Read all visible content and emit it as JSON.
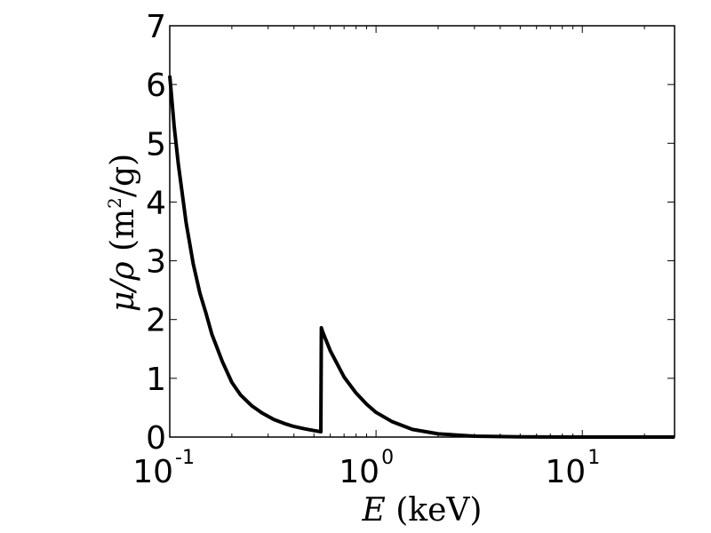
{
  "chart_data": {
    "type": "line",
    "x_scale": "log",
    "xlim": [
      0.1,
      28
    ],
    "ylim": [
      0,
      7
    ],
    "grid": false,
    "xlabel": {
      "var": "E",
      "unit": "(keV)"
    },
    "ylabel": {
      "var": "μ/ρ",
      "unit_open": "(m",
      "unit_sup": "2",
      "unit_close": "/g)"
    },
    "x_ticks": [
      {
        "value": 0.1,
        "base": "10",
        "exp": "-1"
      },
      {
        "value": 1,
        "base": "10",
        "exp": "0"
      },
      {
        "value": 10,
        "base": "10",
        "exp": "1"
      }
    ],
    "y_ticks": [
      {
        "value": 0,
        "label": "0"
      },
      {
        "value": 1,
        "label": "1"
      },
      {
        "value": 2,
        "label": "2"
      },
      {
        "value": 3,
        "label": "3"
      },
      {
        "value": 4,
        "label": "4"
      },
      {
        "value": 5,
        "label": "5"
      },
      {
        "value": 6,
        "label": "6"
      },
      {
        "value": 7,
        "label": "7"
      }
    ],
    "series": [
      {
        "color": "#000000",
        "points": [
          [
            0.1,
            6.15
          ],
          [
            0.105,
            5.3
          ],
          [
            0.11,
            4.65
          ],
          [
            0.12,
            3.65
          ],
          [
            0.13,
            2.95
          ],
          [
            0.14,
            2.45
          ],
          [
            0.15,
            2.1
          ],
          [
            0.16,
            1.75
          ],
          [
            0.18,
            1.28
          ],
          [
            0.2,
            0.93
          ],
          [
            0.22,
            0.72
          ],
          [
            0.25,
            0.53
          ],
          [
            0.28,
            0.41
          ],
          [
            0.32,
            0.3
          ],
          [
            0.36,
            0.23
          ],
          [
            0.4,
            0.18
          ],
          [
            0.45,
            0.14
          ],
          [
            0.5,
            0.11
          ],
          [
            0.54,
            0.09
          ],
          [
            0.543,
            1.86
          ],
          [
            0.55,
            1.8
          ],
          [
            0.6,
            1.47
          ],
          [
            0.7,
            1.02
          ],
          [
            0.8,
            0.75
          ],
          [
            0.9,
            0.56
          ],
          [
            1.0,
            0.42
          ],
          [
            1.2,
            0.26
          ],
          [
            1.5,
            0.13
          ],
          [
            2.0,
            0.055
          ],
          [
            3.0,
            0.015
          ],
          [
            5.0,
            0.003
          ],
          [
            10,
            0.0005
          ],
          [
            28,
            0.0
          ]
        ]
      }
    ]
  }
}
